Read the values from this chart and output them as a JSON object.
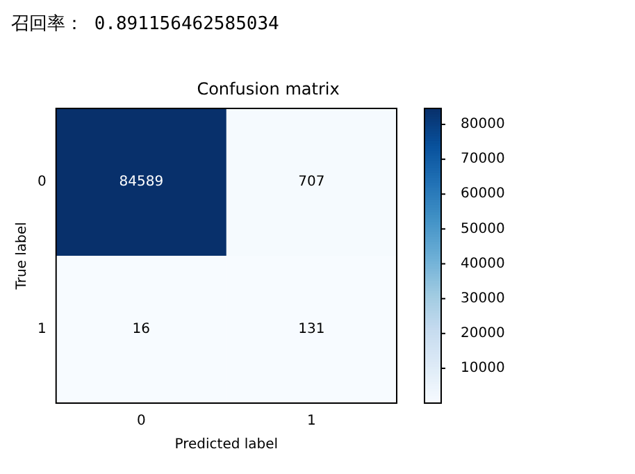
{
  "chart_data": {
    "type": "heatmap",
    "title": "Confusion matrix",
    "xlabel": "Predicted label",
    "ylabel": "True label",
    "categories": [
      "0",
      "1"
    ],
    "y_categories": [
      "0",
      "1"
    ],
    "cells": [
      [
        84589,
        707
      ],
      [
        16,
        131
      ]
    ],
    "data_labels": true,
    "clim": [
      16,
      84589
    ],
    "cticks": [
      10000,
      20000,
      30000,
      40000,
      50000,
      60000,
      70000,
      80000
    ],
    "grid": false,
    "annotations": [
      "召回率： 0.891156462585034"
    ]
  }
}
